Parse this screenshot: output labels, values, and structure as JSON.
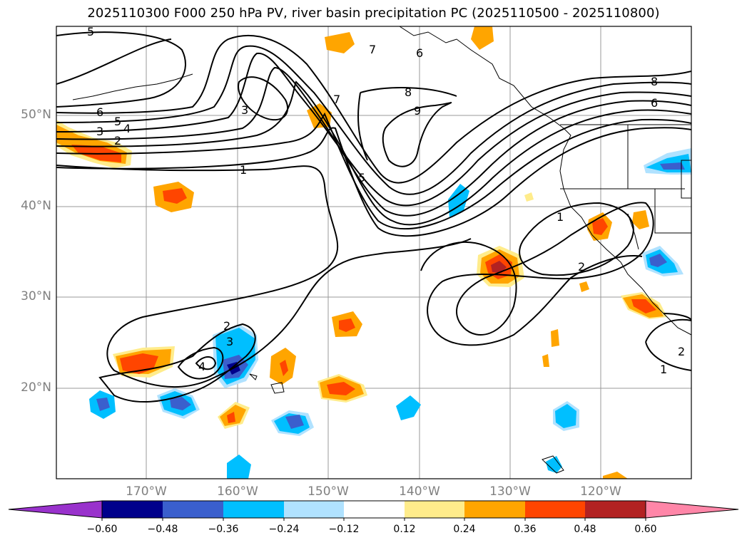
{
  "title": "2025110300 F000 250 hPa PV, river basin precipitation PC (2025110500 - 2025110800)",
  "lat_labels": [
    "50°N",
    "40°N",
    "30°N",
    "20°N"
  ],
  "lon_labels": [
    "170°W",
    "160°W",
    "150°W",
    "140°W",
    "130°W",
    "120°W"
  ],
  "pv_contour_labels": [
    "5",
    "6",
    "5",
    "4",
    "3",
    "2",
    "1",
    "3",
    "7",
    "7",
    "8",
    "9",
    "5",
    "6",
    "6",
    "8",
    "1",
    "2",
    "2",
    "3",
    "4",
    "1",
    "2"
  ],
  "colorbar": {
    "ticks": [
      "−0.60",
      "−0.48",
      "−0.36",
      "−0.24",
      "−0.12",
      "0.12",
      "0.24",
      "0.36",
      "0.48",
      "0.60"
    ],
    "colors": [
      "#9932cc",
      "#00008b",
      "#3a5fcd",
      "#00bfff",
      "#b0e2ff",
      "#ffffff",
      "#ffec8b",
      "#ffa500",
      "#ff4500",
      "#b22222",
      "#ff86a8",
      "#ff86a8"
    ]
  },
  "colors": {
    "contour": "#000000",
    "grid": "#999999",
    "axis_text": "#808080"
  }
}
